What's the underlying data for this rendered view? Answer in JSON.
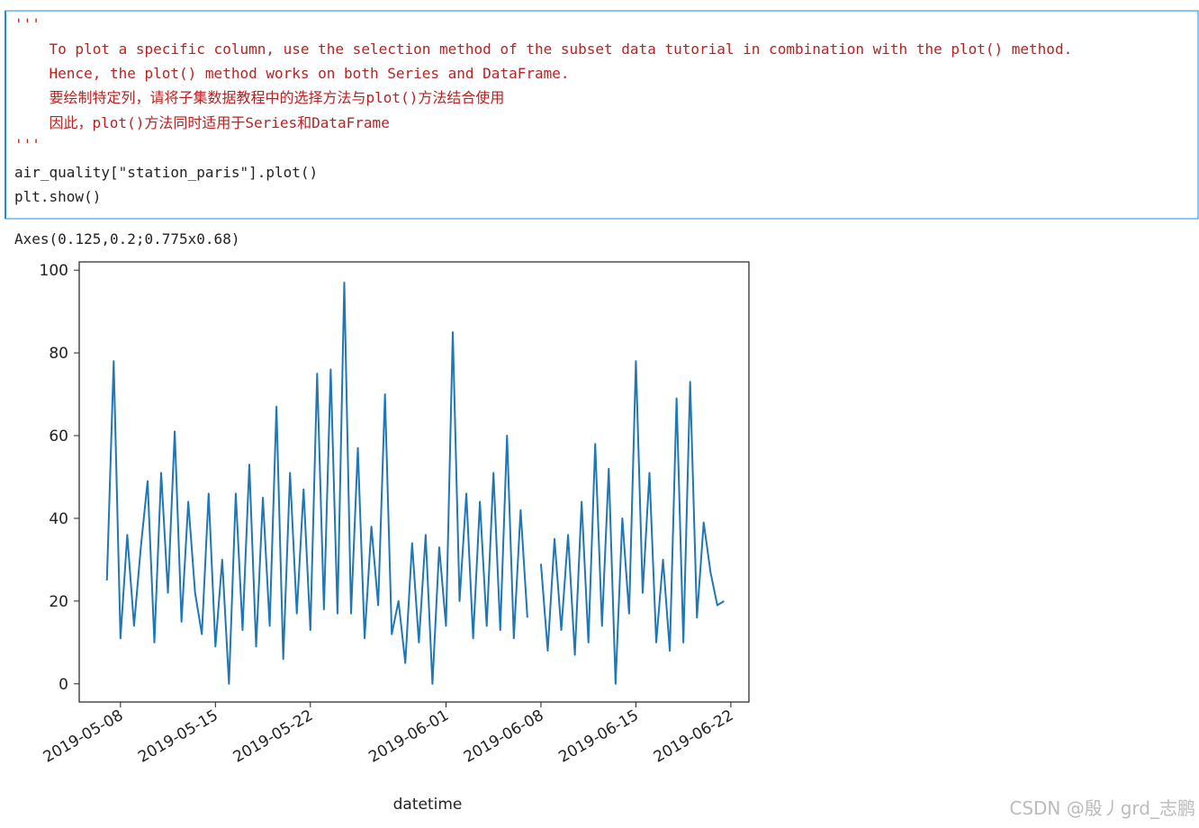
{
  "code_cell": {
    "lines": [
      "'''",
      "    To plot a specific column, use the selection method of the subset data tutorial in combination with the plot() method.",
      "    Hence, the plot() method works on both Series and DataFrame.",
      "    要绘制特定列，请将子集数据教程中的选择方法与plot()方法结合使用",
      "    因此，plot()方法同时适用于Series和DataFrame",
      "'''",
      "air_quality[\"station_paris\"].plot()",
      "plt.show()"
    ]
  },
  "output_text": "Axes(0.125,0.2;0.775x0.68)",
  "chart_data": {
    "type": "line",
    "x_label": "datetime",
    "color": "#1f77b4",
    "x": [
      "2019-05-07 00:00",
      "2019-05-07 12:00",
      "2019-05-08 00:00",
      "2019-05-08 12:00",
      "2019-05-09 00:00",
      "2019-05-09 12:00",
      "2019-05-10 00:00",
      "2019-05-10 12:00",
      "2019-05-11 00:00",
      "2019-05-11 12:00",
      "2019-05-12 00:00",
      "2019-05-12 12:00",
      "2019-05-13 00:00",
      "2019-05-13 12:00",
      "2019-05-14 00:00",
      "2019-05-14 12:00",
      "2019-05-15 00:00",
      "2019-05-15 12:00",
      "2019-05-16 00:00",
      "2019-05-16 12:00",
      "2019-05-17 00:00",
      "2019-05-17 12:00",
      "2019-05-18 00:00",
      "2019-05-18 12:00",
      "2019-05-19 00:00",
      "2019-05-19 12:00",
      "2019-05-20 00:00",
      "2019-05-20 12:00",
      "2019-05-21 00:00",
      "2019-05-21 12:00",
      "2019-05-22 00:00",
      "2019-05-22 12:00",
      "2019-05-23 00:00",
      "2019-05-23 12:00",
      "2019-05-24 00:00",
      "2019-05-24 12:00",
      "2019-05-25 00:00",
      "2019-05-25 12:00",
      "2019-05-26 00:00",
      "2019-05-26 12:00",
      "2019-05-27 00:00",
      "2019-05-27 12:00",
      "2019-05-28 00:00",
      "2019-05-28 12:00",
      "2019-05-29 00:00",
      "2019-05-29 12:00",
      "2019-05-30 00:00",
      "2019-05-30 12:00",
      "2019-05-31 00:00",
      "2019-05-31 12:00",
      "2019-06-01 00:00",
      "2019-06-01 12:00",
      "2019-06-02 00:00",
      "2019-06-02 12:00",
      "2019-06-03 00:00",
      "2019-06-03 12:00",
      "2019-06-04 00:00",
      "2019-06-04 12:00",
      "2019-06-05 00:00",
      "2019-06-05 12:00",
      "2019-06-06 00:00",
      "2019-06-06 12:00",
      "2019-06-07 00:00",
      "2019-06-07 12:00",
      "2019-06-08 00:00",
      "2019-06-08 12:00",
      "2019-06-09 00:00",
      "2019-06-09 12:00",
      "2019-06-10 00:00",
      "2019-06-10 12:00",
      "2019-06-11 00:00",
      "2019-06-11 12:00",
      "2019-06-12 00:00",
      "2019-06-12 12:00",
      "2019-06-13 00:00",
      "2019-06-13 12:00",
      "2019-06-14 00:00",
      "2019-06-14 12:00",
      "2019-06-15 00:00",
      "2019-06-15 12:00",
      "2019-06-16 00:00",
      "2019-06-16 12:00",
      "2019-06-17 00:00",
      "2019-06-17 12:00",
      "2019-06-18 00:00",
      "2019-06-18 12:00",
      "2019-06-19 00:00",
      "2019-06-19 12:00",
      "2019-06-20 00:00",
      "2019-06-20 12:00",
      "2019-06-21 00:00",
      "2019-06-21 12:00"
    ],
    "values": [
      25,
      78,
      11,
      36,
      14,
      33,
      49,
      10,
      51,
      22,
      61,
      15,
      44,
      22,
      12,
      46,
      9,
      30,
      0,
      46,
      13,
      53,
      9,
      45,
      14,
      67,
      6,
      51,
      17,
      47,
      13,
      75,
      18,
      76,
      17,
      97,
      17,
      57,
      11,
      38,
      19,
      70,
      12,
      20,
      5,
      34,
      10,
      36,
      0,
      33,
      14,
      85,
      20,
      46,
      11,
      44,
      14,
      51,
      13,
      60,
      11,
      42,
      16,
      null,
      29,
      8,
      35,
      13,
      36,
      7,
      44,
      10,
      58,
      14,
      52,
      0,
      40,
      17,
      78,
      22,
      51,
      10,
      30,
      8,
      69,
      10,
      73,
      16,
      39,
      27,
      19,
      20
    ],
    "xlim": [
      "2019-05-04 23:00",
      "2019-06-23 08:00"
    ],
    "xticks": [
      "2019-05-08",
      "2019-05-15",
      "2019-05-22",
      "2019-06-01",
      "2019-06-08",
      "2019-06-15",
      "2019-06-22"
    ],
    "ylim": [
      -4.4,
      102
    ],
    "yticks": [
      0,
      20,
      40,
      60,
      80,
      100
    ],
    "grid": false
  },
  "watermark": "CSDN @殷丿grd_志鹏"
}
